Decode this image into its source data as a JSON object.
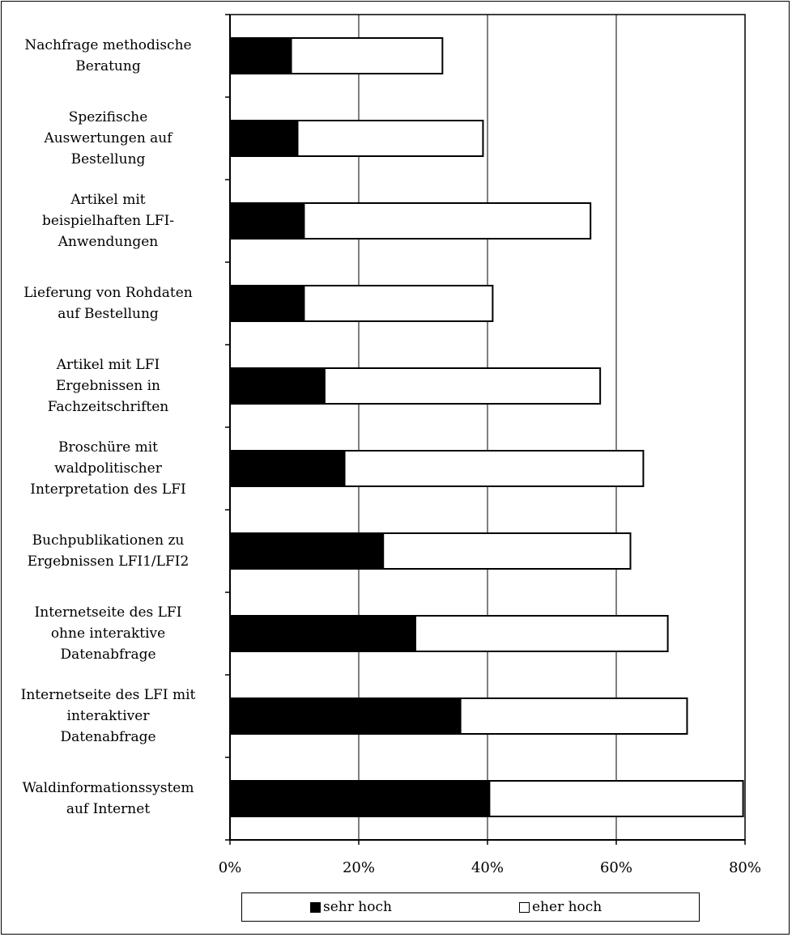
{
  "chart_data": {
    "type": "bar",
    "orientation": "horizontal",
    "stacked": true,
    "categories": [
      "Nachfrage methodische\nBeratung",
      "Spezifische\nAuswertungen auf\nBestellung",
      "Artikel mit\nbeispielhaften LFI-\nAnwendungen",
      "Lieferung von Rohdaten\nauf Bestellung",
      "Artikel mit LFI\nErgebnissen in\nFachzeitschriften",
      "Broschüre mit\nwaldpolitischer\nInterpretation des LFI",
      "Buchpublikationen zu\nErgebnissen LFI1/LFI2",
      "Internetseite des LFI\nohne interaktive\nDatenabfrage",
      "Internetseite des LFI mit\ninteraktiver\nDatenabfrage",
      "Waldinformationssystem\nauf Internet"
    ],
    "series": [
      {
        "name": "sehr hoch",
        "color": "#000000",
        "values": [
          9.5,
          10.5,
          11.5,
          11.5,
          14.7,
          17.8,
          23.8,
          28.8,
          35.8,
          40.3
        ]
      },
      {
        "name": "eher hoch",
        "color": "#ffffff",
        "values": [
          23.5,
          28.8,
          44.5,
          29.3,
          42.8,
          46.4,
          38.4,
          39.2,
          35.2,
          39.4
        ]
      }
    ],
    "xlim": [
      0,
      80
    ],
    "xticks": [
      "0%",
      "20%",
      "40%",
      "60%",
      "80%"
    ],
    "grid": "vertical",
    "legend": "bottom",
    "title": "",
    "xlabel": "",
    "ylabel": ""
  }
}
